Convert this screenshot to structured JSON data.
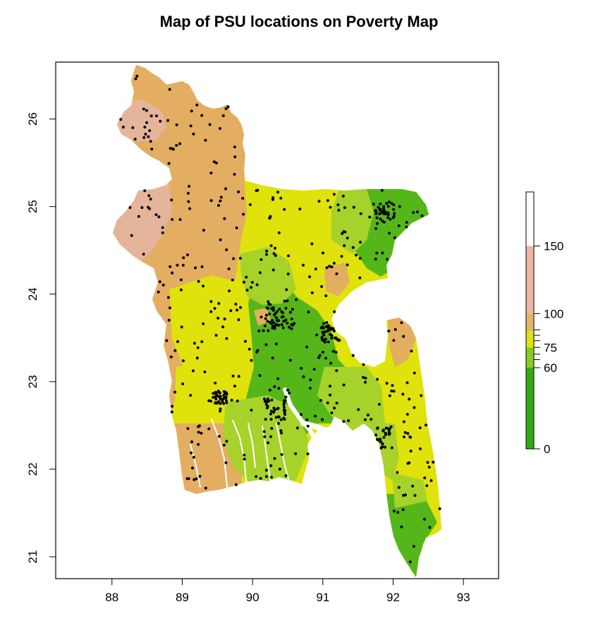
{
  "title": "Map of PSU locations on Poverty Map",
  "x_axis": {
    "ticks": [
      "88",
      "89",
      "90",
      "91",
      "92",
      "93"
    ],
    "range": [
      87.2,
      93.5
    ]
  },
  "y_axis": {
    "ticks": [
      "21",
      "22",
      "23",
      "24",
      "25",
      "26"
    ],
    "range": [
      20.75,
      26.65
    ]
  },
  "legend": {
    "labels": [
      "0",
      "60",
      "75",
      "100",
      "150"
    ],
    "break_values": [
      0,
      60,
      75,
      100,
      150
    ],
    "max_value": 190,
    "bands": [
      {
        "from": 0,
        "to": 60,
        "color": "#33aa11"
      },
      {
        "from": 60,
        "to": 75,
        "color": "#88cc22"
      },
      {
        "from": 75,
        "to": 87,
        "color": "#dde211"
      },
      {
        "from": 87,
        "to": 100,
        "color": "#e6b466"
      },
      {
        "from": 100,
        "to": 150,
        "color": "#e9b7a4"
      },
      {
        "from": 150,
        "to": 190,
        "color": "#ffffff"
      }
    ],
    "extra_ticks": [
      66,
      70,
      80,
      84,
      88
    ]
  },
  "colors": {
    "tan": "#e3ad62",
    "pink": "#e4b59b",
    "yellow": "#e0e20c",
    "yellowgreen": "#a6d22a",
    "green": "#55b61a",
    "psu_dot": "#000000"
  }
}
